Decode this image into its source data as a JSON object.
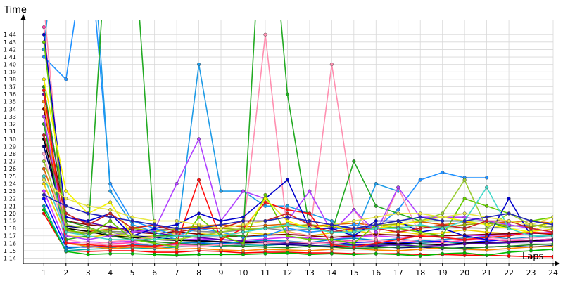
{
  "chart_data": {
    "type": "line",
    "title": "",
    "xlabel": "Laps",
    "ylabel": "Time",
    "x": [
      1,
      2,
      3,
      4,
      5,
      6,
      7,
      8,
      9,
      10,
      11,
      12,
      13,
      14,
      15,
      16,
      17,
      18,
      19,
      20,
      21,
      22,
      23,
      24
    ],
    "x_ticks": [
      "1",
      "2",
      "3",
      "4",
      "5",
      "6",
      "7",
      "8",
      "9",
      "10",
      "11",
      "12",
      "13",
      "14",
      "15",
      "16",
      "17",
      "18",
      "19",
      "20",
      "21",
      "22",
      "23",
      "24"
    ],
    "y_tick_labels": [
      "1:14",
      "1:15",
      "1:16",
      "1:17",
      "1:18",
      "1:19",
      "1:20",
      "1:21",
      "1:22",
      "1:23",
      "1:24",
      "1:25",
      "1:26",
      "1:27",
      "1:28",
      "1:29",
      "1:30",
      "1:31",
      "1:32",
      "1:33",
      "1:34",
      "1:35",
      "1:36",
      "1:37",
      "1:38",
      "1:39",
      "1:40",
      "1:41",
      "1:42",
      "1:43",
      "1:44"
    ],
    "y_unit": "seconds",
    "ylim": [
      73.3,
      106
    ],
    "xlim": [
      0.1,
      24
    ],
    "grid": true,
    "legend": "none",
    "series": [
      {
        "color": "#ff0000",
        "values": [
          80,
          75,
          74.9,
          75,
          75,
          74.8,
          74.8,
          75,
          74.9,
          74.7,
          74.8,
          74.8,
          74.7,
          74.7,
          74.6,
          74.6,
          74.6,
          74.5,
          74.5,
          74.4,
          74.4,
          74.3,
          74.2,
          74.2
        ]
      },
      {
        "color": "#00bb00",
        "values": [
          80.5,
          74.9,
          74.5,
          74.6,
          74.6,
          74.5,
          74.4,
          74.5,
          74.5,
          74.5,
          74.6,
          74.7,
          74.5,
          74.6,
          74.5,
          74.6,
          74.5,
          74.3,
          74.6,
          74.7,
          74.4,
          74.8,
          75.0,
          75.2
        ]
      },
      {
        "color": "#00aaaa",
        "values": [
          81,
          75,
          75.2,
          75.3,
          75.4,
          75.3,
          75.5,
          75.7,
          75.6,
          75.8,
          75.7,
          75.9,
          76.0,
          75.8,
          75.7,
          75.9,
          75.7,
          76.0,
          76.2,
          76.0,
          75.9,
          76.1,
          76.3,
          76.4
        ]
      },
      {
        "color": "#0000ff",
        "values": [
          82,
          75.5,
          75.5,
          75.6,
          75.5,
          75.7,
          75.8,
          75.9,
          76.0,
          76.2,
          76.0,
          76.1,
          76.0,
          75.9,
          76.1,
          76.2,
          76.0,
          76.2,
          76.3,
          76.1,
          76.3,
          76.5,
          76.4,
          76.6
        ]
      },
      {
        "color": "#cc33ff",
        "values": [
          83,
          76,
          76.2,
          76.1,
          76.3,
          76.5,
          76.4,
          76.6,
          76.5,
          76.4,
          76.6,
          76.8,
          76.7,
          76.5,
          76.9,
          77.0,
          76.8,
          76.9,
          77.0,
          77.1,
          77.0,
          77.2,
          77.3,
          77.5
        ]
      },
      {
        "color": "#ff44aa",
        "values": [
          105,
          76.2,
          75.5,
          75.9,
          76.1,
          75.6,
          75.8,
          75.7,
          75.9,
          76.0,
          76.3,
          76.1,
          76.0,
          76.2,
          76.4,
          76.3,
          76.5,
          76.2,
          76.1,
          76.4,
          76.6,
          76.3,
          76.4,
          76.6
        ]
      },
      {
        "color": "#f0d000",
        "values": [
          84,
          77,
          76.8,
          77.2,
          76.8,
          77.0,
          77.4,
          77.3,
          77.1,
          77.5,
          77.2,
          77.6,
          77.0,
          77.4,
          77.7,
          77.3,
          77.6,
          77.2,
          77.4,
          77.8,
          77.5,
          77.3,
          77.6,
          77.9
        ]
      },
      {
        "color": "#888888",
        "values": [
          85,
          77.5,
          77.3,
          77.6,
          77.5,
          77.8,
          77.9,
          77.6,
          77.5,
          77.8,
          78.0,
          77.7,
          77.9,
          78.1,
          77.8,
          78.0,
          78.2,
          78.0,
          78.3,
          78.1,
          78.0,
          78.3,
          78.5,
          78.2
        ]
      },
      {
        "color": "#e06000",
        "values": [
          86,
          78,
          77.6,
          77.9,
          78.1,
          78.4,
          78.0,
          78.3,
          78.5,
          78.2,
          78.4,
          78.6,
          78.3,
          78.5,
          78.7,
          78.4,
          78.6,
          78.9,
          78.5,
          78.8,
          78.6,
          78.9,
          79.0,
          78.7
        ]
      },
      {
        "color": "#000080",
        "values": [
          89,
          78.3,
          78.0,
          77.5,
          77.0,
          76.8,
          76.5,
          76.4,
          76.2,
          76.0,
          75.9,
          75.8,
          75.7,
          75.6,
          75.5,
          75.6,
          75.4,
          75.5,
          75.3,
          75.4,
          75.5,
          75.6,
          75.5,
          75.7
        ]
      },
      {
        "color": "#000000",
        "values": [
          90,
          78,
          77.6,
          77.0,
          76.8,
          76.5,
          76.4,
          76.3,
          76.2,
          76.1,
          76.0,
          76.1,
          75.9,
          76.0,
          75.8,
          75.9,
          76.0,
          75.9,
          75.8,
          76.0,
          76.1,
          76.2,
          76.3,
          76.5
        ]
      },
      {
        "color": "#800000",
        "values": [
          94,
          79,
          78.5,
          78.2,
          77.5,
          77.3,
          77.6,
          77.2,
          77.0,
          76.9,
          77.1,
          77.2,
          77.0,
          76.8,
          77.0,
          77.2,
          77.1,
          76.9,
          77.0,
          77.1,
          77.2,
          77.3,
          77.4,
          77.2
        ]
      },
      {
        "color": "#0088cc",
        "values": [
          93,
          75.3,
          75.6,
          75.4,
          75.8,
          75.7,
          76.0,
          76.1,
          75.9,
          76.2,
          76.4,
          76.3,
          76.1,
          76.5,
          76.7,
          76.4,
          76.6,
          76.3,
          76.5,
          76.7,
          76.9,
          76.6,
          76.8,
          77.0
        ]
      },
      {
        "color": "#9ab000",
        "values": [
          92,
          77.7,
          77.4,
          77.8,
          78.0,
          77.6,
          77.9,
          78.2,
          78.0,
          77.8,
          78.1,
          78.3,
          78.5,
          78.2,
          78.0,
          78.4,
          78.6,
          78.3,
          78.1,
          78.5,
          78.7,
          78.4,
          78.2,
          78.8
        ]
      },
      {
        "color": "#ff8800",
        "values": [
          95,
          76,
          75.6,
          75.3,
          75.5,
          75.4,
          75.2,
          75.3,
          75.1,
          75.0,
          75.2,
          75.1,
          75.0,
          75.2,
          75.3,
          75.1,
          75.0,
          75.2,
          75.4,
          75.2,
          75.1,
          75.3,
          75.5,
          75.6
        ]
      },
      {
        "color": "#5500aa",
        "values": [
          96,
          79.5,
          78.8,
          78.2,
          77.8,
          77.4,
          77.0,
          76.8,
          76.5,
          76.3,
          76.1,
          76.0,
          75.9,
          76.0,
          75.8,
          75.7,
          75.8,
          75.6,
          75.7,
          75.9,
          76.0,
          76.1,
          76.2,
          76.4
        ]
      },
      {
        "color": "#228b22",
        "values": [
          97,
          79,
          78.2,
          77.0,
          76.5,
          76.2,
          76.0,
          75.8,
          75.7,
          75.6,
          75.5,
          75.4,
          75.6,
          75.5,
          75.3,
          75.4,
          75.5,
          75.6,
          75.4,
          75.3,
          75.5,
          75.6,
          75.8,
          75.9
        ]
      },
      {
        "color": "#ffaacc",
        "values": [
          88,
          76.5,
          76.0,
          75.8,
          75.6,
          75.5,
          75.7,
          75.6,
          75.8,
          75.9,
          76.0,
          76.2,
          76.1,
          75.9,
          76.3,
          76.4,
          76.2,
          76.5,
          76.4,
          76.6,
          76.8,
          76.5,
          76.7,
          76.9
        ]
      },
      {
        "color": "#1e90ff",
        "values": [
          101,
          98,
          118,
          84,
          79,
          78,
          77,
          78,
          77.5,
          76.8,
          77,
          78,
          77.5,
          77.8,
          78.5,
          78,
          80.5,
          84.5,
          85.5,
          84.8,
          84.8,
          null,
          null,
          null
        ]
      },
      {
        "color": "#1e9be6",
        "values": [
          102,
          130,
          125,
          83,
          78.5,
          77.5,
          76.5,
          100,
          83,
          83,
          81,
          81,
          80,
          79,
          77,
          84,
          83,
          null,
          null,
          null,
          null,
          null,
          null,
          null
        ]
      },
      {
        "color": "#ff8fb0",
        "values": [
          108,
          76,
          75.8,
          76.2,
          76.5,
          76.8,
          77.2,
          77,
          76.8,
          77.5,
          104,
          77.5,
          77,
          100,
          80.5,
          76.5,
          83.5,
          77,
          null,
          null,
          null,
          null,
          null,
          null
        ]
      },
      {
        "color": "#22aa22",
        "values": [
          92,
          76.5,
          77,
          125,
          120,
          77,
          77,
          77,
          77,
          77,
          130,
          96,
          78,
          77.5,
          87,
          81,
          80,
          79,
          79,
          79,
          79,
          78,
          null,
          null
        ]
      },
      {
        "color": "#ff1010",
        "values": [
          96.5,
          76,
          75.8,
          75.6,
          75.7,
          75.6,
          76,
          84.5,
          76.5,
          78,
          81.5,
          80.5,
          80,
          75.8,
          75.5,
          76,
          76.5,
          77,
          76.8,
          76.5,
          76.8,
          77,
          77.5,
          77.3
        ]
      },
      {
        "color": "#b040ff",
        "values": [
          93,
          77,
          76.5,
          77,
          77.5,
          77.8,
          84,
          90,
          79,
          83,
          82,
          79,
          83,
          77.5,
          80.5,
          77.5,
          83.5,
          79.5,
          79.5,
          79.5,
          79,
          78.5,
          78,
          77.5
        ]
      },
      {
        "color": "#0000cc",
        "values": [
          104,
          79.5,
          79,
          80,
          77,
          78,
          78.5,
          80,
          79,
          79.5,
          82,
          84.5,
          78,
          78,
          77,
          79,
          79,
          77.5,
          78,
          77,
          76.5,
          82,
          77,
          77
        ]
      },
      {
        "color": "#66cc00",
        "values": [
          103,
          78,
          77,
          79,
          76.5,
          76,
          75.5,
          79.5,
          77,
          76,
          82.5,
          77,
          76.5,
          76.5,
          76,
          78.5,
          78,
          77.5,
          77,
          82,
          81,
          80,
          79,
          79.5
        ]
      },
      {
        "color": "#f5f500",
        "values": [
          98,
          83,
          80,
          81.5,
          77,
          76.5,
          76.5,
          77,
          77,
          77.5,
          82,
          79,
          78,
          78.5,
          77.5,
          78,
          78.5,
          79,
          79.5,
          79,
          78.5,
          78,
          77.5,
          79
        ]
      },
      {
        "color": "#9acd32",
        "values": [
          87,
          78.5,
          78,
          77.5,
          77,
          76.5,
          76.5,
          77,
          77.5,
          78,
          78,
          78.5,
          78,
          77.5,
          78,
          78.5,
          79,
          79,
          80,
          84.5,
          78,
          80,
          78.5,
          78
        ]
      },
      {
        "color": "#cc2222",
        "values": [
          90.5,
          80,
          78.5,
          80,
          78,
          78.5,
          77.5,
          78,
          78,
          79,
          79,
          80,
          78.5,
          77.5,
          78,
          78,
          77.5,
          78,
          78.5,
          78,
          79,
          79,
          78,
          77.5
        ]
      },
      {
        "color": "#40d8c8",
        "values": [
          85,
          77.5,
          77,
          76.5,
          76.5,
          76.5,
          77,
          77,
          77,
          77.5,
          78,
          78.5,
          78,
          77.5,
          77.5,
          78,
          78,
          78.5,
          78,
          79,
          83.5,
          78,
          77,
          77
        ]
      },
      {
        "color": "#e8e848",
        "values": [
          84.5,
          82,
          81,
          80.5,
          79.5,
          79,
          79,
          78.5,
          78,
          78.5,
          79,
          79.5,
          79,
          78.5,
          79,
          79.5,
          80,
          80,
          79.5,
          80,
          79.5,
          79,
          78.5,
          79.5
        ]
      },
      {
        "color": "#2222bb",
        "values": [
          82.5,
          81,
          80,
          79.5,
          79,
          78.5,
          78,
          78,
          78.5,
          79,
          79,
          79.5,
          79,
          78.5,
          78,
          78.5,
          79,
          79.5,
          79,
          79,
          79.5,
          80,
          79,
          78.5
        ]
      }
    ]
  }
}
